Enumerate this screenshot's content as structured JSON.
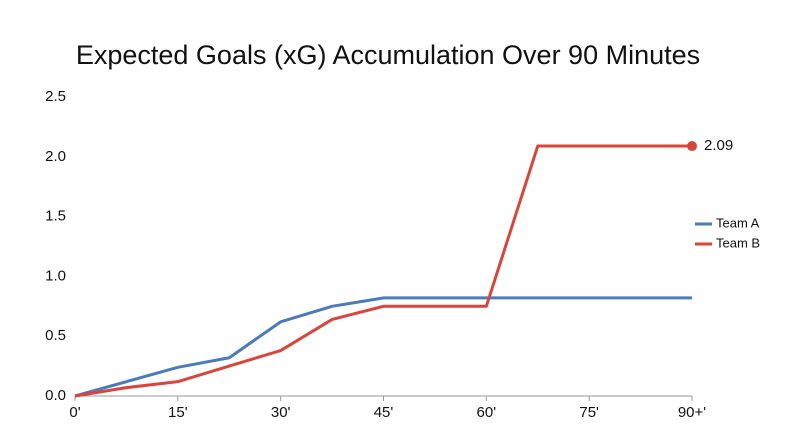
{
  "chart_data": {
    "type": "line",
    "title": "Expected Goals (xG) Accumulation Over 90 Minutes",
    "x": [
      0,
      7.5,
      15,
      22.5,
      30,
      37.5,
      45,
      52.5,
      60,
      67.5,
      75,
      82.5,
      90
    ],
    "series": [
      {
        "name": "Team A",
        "color": "#4a7bbb",
        "values": [
          0,
          0.12,
          0.24,
          0.32,
          0.62,
          0.75,
          0.82,
          0.82,
          0.82,
          0.82,
          0.82,
          0.82,
          0.82
        ]
      },
      {
        "name": "Team B",
        "color": "#d8453b",
        "end_label": true,
        "values": [
          0,
          0.07,
          0.12,
          0.25,
          0.38,
          0.64,
          0.75,
          0.75,
          0.75,
          2.09,
          2.09,
          2.09,
          2.09
        ]
      }
    ],
    "xlim": [
      0,
      90
    ],
    "xticks": [
      {
        "value": 0,
        "label": "0'"
      },
      {
        "value": 15,
        "label": "15'"
      },
      {
        "value": 30,
        "label": "30'"
      },
      {
        "value": 45,
        "label": "45'"
      },
      {
        "value": 60,
        "label": "60'"
      },
      {
        "value": 75,
        "label": "75'"
      },
      {
        "value": 90,
        "label": "90+'"
      }
    ],
    "ylim": [
      0,
      2.5
    ],
    "yticks": [
      {
        "value": 0,
        "label": "0.0"
      },
      0.5,
      {
        "value": 1,
        "label": "1.0"
      },
      1.5,
      {
        "value": 2,
        "label": "2.0"
      },
      2.5
    ],
    "grid": false,
    "legend": "right"
  }
}
